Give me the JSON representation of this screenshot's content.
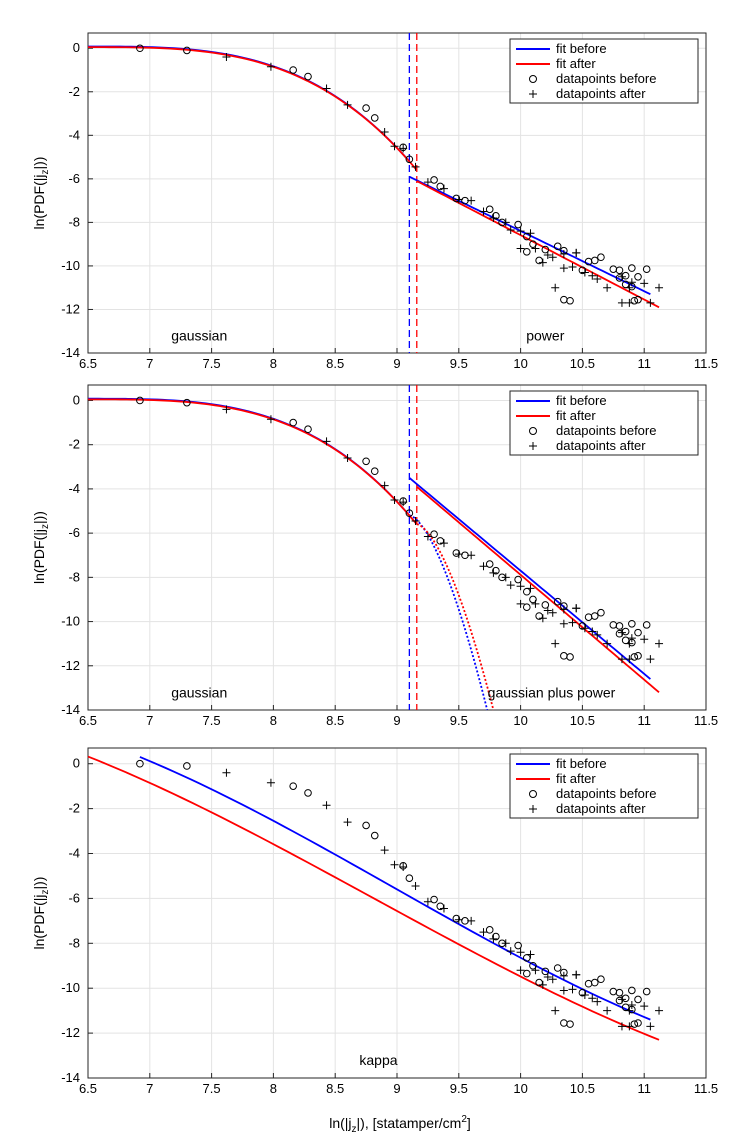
{
  "figure": {
    "xlabel_main": "ln(|j",
    "xlabel_sub": "z",
    "xlabel_tail": "|), [statamper/cm",
    "xlabel_sup": "2",
    "xlabel_end": "]"
  },
  "colors": {
    "fit_before": "#0000ff",
    "fit_after": "#ff0000",
    "grid": "#e3e3e3",
    "axis": "#262626"
  },
  "chart_data": [
    {
      "type": "line",
      "id": "panel1",
      "annotations": [
        {
          "text": "gaussian",
          "x": 7.4,
          "y": -13.2
        },
        {
          "text": "power",
          "x": 10.2,
          "y": -13.2
        }
      ],
      "xlim": [
        6.5,
        11.5
      ],
      "ylim": [
        -14,
        0.7
      ],
      "xticks": [
        6.5,
        7,
        7.5,
        8,
        8.5,
        9,
        9.5,
        10,
        10.5,
        11,
        11.5
      ],
      "yticks": [
        -14,
        -12,
        -10,
        -8,
        -6,
        -4,
        -2,
        0
      ],
      "ylabel_main": "ln(PDF(|j",
      "ylabel_sub": "z",
      "ylabel_end": "|))",
      "legend": [
        "fit before",
        "fit after",
        "datapoints before",
        "datapoints after"
      ],
      "vlines": [
        {
          "x": 9.1,
          "series": "before"
        },
        {
          "x": 9.16,
          "series": "after"
        }
      ],
      "fits": [
        {
          "name": "fit before",
          "kind": "gauss",
          "a": 0.1,
          "c": 6.5,
          "s": 0.0,
          "x0": 6.5,
          "x1": 9.1,
          "y0": 0.08,
          "ymid": -0.7,
          "xm": 7.6,
          "yend": -5.2
        },
        {
          "name": "fit before",
          "kind": "linear",
          "x0": 9.1,
          "x1": 11.05,
          "y0": -5.9,
          "y1": -11.3
        },
        {
          "name": "fit after",
          "kind": "gauss",
          "x0": 6.5,
          "x1": 9.16,
          "y0": 0.05,
          "ymid": -0.9,
          "xm": 7.6,
          "yend": -5.6
        },
        {
          "name": "fit after",
          "kind": "linear",
          "x0": 9.16,
          "x1": 11.12,
          "y0": -6.1,
          "y1": -11.9
        }
      ]
    },
    {
      "type": "line",
      "id": "panel2",
      "annotations": [
        {
          "text": "gaussian",
          "x": 7.4,
          "y": -13.2
        },
        {
          "text": "gaussian plus power",
          "x": 10.25,
          "y": -13.2
        }
      ],
      "xlim": [
        6.5,
        11.5
      ],
      "ylim": [
        -14,
        0.7
      ],
      "xticks": [
        6.5,
        7,
        7.5,
        8,
        8.5,
        9,
        9.5,
        10,
        10.5,
        11,
        11.5
      ],
      "yticks": [
        -14,
        -12,
        -10,
        -8,
        -6,
        -4,
        -2,
        0
      ],
      "ylabel_main": "ln(PDF(|j",
      "ylabel_sub": "z",
      "ylabel_end": "|))",
      "legend": [
        "fit before",
        "fit after",
        "datapoints before",
        "datapoints after"
      ],
      "vlines": [
        {
          "x": 9.1,
          "series": "before"
        },
        {
          "x": 9.16,
          "series": "after"
        }
      ],
      "fits": [
        {
          "name": "fit before",
          "kind": "gauss",
          "x0": 6.5,
          "x1": 9.1,
          "y0": 0.08,
          "ymid": -0.7,
          "xm": 7.6,
          "yend": -5.2
        },
        {
          "name": "fit before",
          "kind": "gauss-tail",
          "x0": 9.1,
          "x1": 9.73,
          "y0": -5.2,
          "y1": -14
        },
        {
          "name": "fit before",
          "kind": "linear",
          "x0": 9.1,
          "x1": 11.05,
          "y0": -3.5,
          "y1": -12.6
        },
        {
          "name": "fit after",
          "kind": "gauss",
          "x0": 6.5,
          "x1": 9.16,
          "y0": 0.05,
          "ymid": -0.9,
          "xm": 7.6,
          "yend": -5.6
        },
        {
          "name": "fit after",
          "kind": "gauss-tail",
          "x0": 9.16,
          "x1": 9.78,
          "y0": -5.6,
          "y1": -14
        },
        {
          "name": "fit after",
          "kind": "linear",
          "x0": 9.16,
          "x1": 11.12,
          "y0": -3.9,
          "y1": -13.2
        }
      ]
    },
    {
      "type": "line",
      "id": "panel3",
      "annotations": [
        {
          "text": "kappa",
          "x": 8.85,
          "y": -13.2
        }
      ],
      "xlim": [
        6.5,
        11.5
      ],
      "ylim": [
        -14,
        0.7
      ],
      "xticks": [
        6.5,
        7,
        7.5,
        8,
        8.5,
        9,
        9.5,
        10,
        10.5,
        11,
        11.5
      ],
      "yticks": [
        -14,
        -12,
        -10,
        -8,
        -6,
        -4,
        -2,
        0
      ],
      "ylabel_main": "ln(PDF(|j",
      "ylabel_sub": "z",
      "ylabel_end": "|))",
      "legend": [
        "fit before",
        "fit after",
        "datapoints before",
        "datapoints after"
      ],
      "vlines": [],
      "fits": [
        {
          "name": "fit before",
          "kind": "kappa",
          "x0": 6.92,
          "x1": 11.05,
          "y0": 0.3,
          "y1": -11.4
        },
        {
          "name": "fit after",
          "kind": "kappa",
          "x0": 6.5,
          "x1": 11.12,
          "y0": 0.32,
          "y1": -12.3
        }
      ]
    }
  ],
  "datapoints_before": [
    [
      6.92,
      0.0
    ],
    [
      7.3,
      -0.1
    ],
    [
      8.16,
      -1.0
    ],
    [
      8.28,
      -1.3
    ],
    [
      8.75,
      -2.75
    ],
    [
      8.82,
      -3.2
    ],
    [
      9.05,
      -4.55
    ],
    [
      9.1,
      -5.1
    ],
    [
      9.3,
      -6.05
    ],
    [
      9.35,
      -6.35
    ],
    [
      9.48,
      -6.9
    ],
    [
      9.55,
      -7.0
    ],
    [
      9.75,
      -7.4
    ],
    [
      9.8,
      -7.7
    ],
    [
      9.85,
      -8.0
    ],
    [
      9.98,
      -8.1
    ],
    [
      10.05,
      -8.65
    ],
    [
      10.1,
      -9.0
    ],
    [
      10.2,
      -9.25
    ],
    [
      10.05,
      -9.35
    ],
    [
      10.15,
      -9.75
    ],
    [
      10.3,
      -9.1
    ],
    [
      10.35,
      -9.3
    ],
    [
      10.55,
      -9.8
    ],
    [
      10.6,
      -9.75
    ],
    [
      10.65,
      -9.6
    ],
    [
      10.75,
      -10.15
    ],
    [
      10.8,
      -10.2
    ],
    [
      10.85,
      -10.45
    ],
    [
      10.9,
      -10.1
    ],
    [
      10.95,
      -10.5
    ],
    [
      10.8,
      -10.55
    ],
    [
      10.85,
      -10.85
    ],
    [
      10.9,
      -10.95
    ],
    [
      11.02,
      -10.15
    ],
    [
      10.95,
      -11.55
    ],
    [
      10.92,
      -11.6
    ],
    [
      10.35,
      -11.55
    ],
    [
      10.4,
      -11.6
    ],
    [
      10.5,
      -10.2
    ]
  ],
  "datapoints_after": [
    [
      7.62,
      -0.4
    ],
    [
      7.98,
      -0.85
    ],
    [
      8.43,
      -1.85
    ],
    [
      8.6,
      -2.6
    ],
    [
      8.9,
      -3.85
    ],
    [
      8.98,
      -4.5
    ],
    [
      9.05,
      -4.6
    ],
    [
      9.15,
      -5.45
    ],
    [
      9.25,
      -6.15
    ],
    [
      9.38,
      -6.45
    ],
    [
      9.5,
      -6.95
    ],
    [
      9.6,
      -7.0
    ],
    [
      9.7,
      -7.5
    ],
    [
      9.78,
      -7.8
    ],
    [
      9.88,
      -8.0
    ],
    [
      9.92,
      -8.35
    ],
    [
      10.0,
      -8.4
    ],
    [
      10.08,
      -8.5
    ],
    [
      10.0,
      -9.2
    ],
    [
      10.12,
      -9.2
    ],
    [
      10.22,
      -9.5
    ],
    [
      10.18,
      -9.85
    ],
    [
      10.26,
      -9.6
    ],
    [
      10.35,
      -9.45
    ],
    [
      10.45,
      -9.4
    ],
    [
      10.42,
      -10.05
    ],
    [
      10.52,
      -10.3
    ],
    [
      10.58,
      -10.45
    ],
    [
      10.62,
      -10.6
    ],
    [
      10.7,
      -11.0
    ],
    [
      10.82,
      -10.5
    ],
    [
      10.88,
      -11.0
    ],
    [
      10.9,
      -10.75
    ],
    [
      11.0,
      -10.8
    ],
    [
      11.05,
      -11.7
    ],
    [
      11.12,
      -11.0
    ],
    [
      10.88,
      -11.7
    ],
    [
      10.28,
      -11.0
    ],
    [
      10.82,
      -11.7
    ],
    [
      10.45,
      -9.4
    ],
    [
      10.35,
      -10.1
    ]
  ]
}
